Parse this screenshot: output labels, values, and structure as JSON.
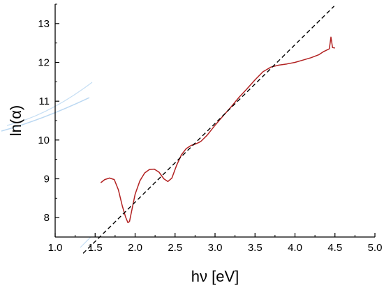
{
  "chart_data": {
    "type": "line",
    "xlabel": "hν [eV]",
    "ylabel": "ln(α)",
    "xlim": [
      1.0,
      5.0
    ],
    "ylim": [
      7.5,
      13.5
    ],
    "xticks": [
      "1.0",
      "1.5",
      "2.0",
      "2.5",
      "3.0",
      "3.5",
      "4.0",
      "4.5",
      "5.0"
    ],
    "yticks": [
      "8",
      "9",
      "10",
      "11",
      "12",
      "13"
    ],
    "grid": false,
    "legend": "none",
    "series": [
      {
        "color": "#b22222",
        "style": "solid",
        "x": [
          1.57,
          1.62,
          1.68,
          1.74,
          1.79,
          1.84,
          1.88,
          1.91,
          1.93,
          1.96,
          2.0,
          2.06,
          2.12,
          2.18,
          2.24,
          2.3,
          2.36,
          2.41,
          2.46,
          2.52,
          2.58,
          2.64,
          2.7,
          2.76,
          2.82,
          2.9,
          3.0,
          3.1,
          3.2,
          3.3,
          3.4,
          3.5,
          3.6,
          3.7,
          3.8,
          3.9,
          4.0,
          4.1,
          4.2,
          4.3,
          4.36,
          4.4,
          4.43,
          4.45,
          4.47,
          4.5
        ],
        "y": [
          8.9,
          8.98,
          9.02,
          8.98,
          8.72,
          8.3,
          8.02,
          7.87,
          7.9,
          8.2,
          8.6,
          8.95,
          9.15,
          9.24,
          9.25,
          9.17,
          9.0,
          8.93,
          9.02,
          9.35,
          9.62,
          9.78,
          9.86,
          9.9,
          9.96,
          10.12,
          10.38,
          10.62,
          10.85,
          11.1,
          11.32,
          11.55,
          11.76,
          11.88,
          11.93,
          11.96,
          12.0,
          12.06,
          12.12,
          12.2,
          12.28,
          12.32,
          12.35,
          12.65,
          12.38,
          12.37
        ]
      },
      {
        "color": "#000000",
        "style": "dashed",
        "x": [
          1.35,
          4.49
        ],
        "y": [
          7.08,
          13.45
        ]
      }
    ]
  }
}
